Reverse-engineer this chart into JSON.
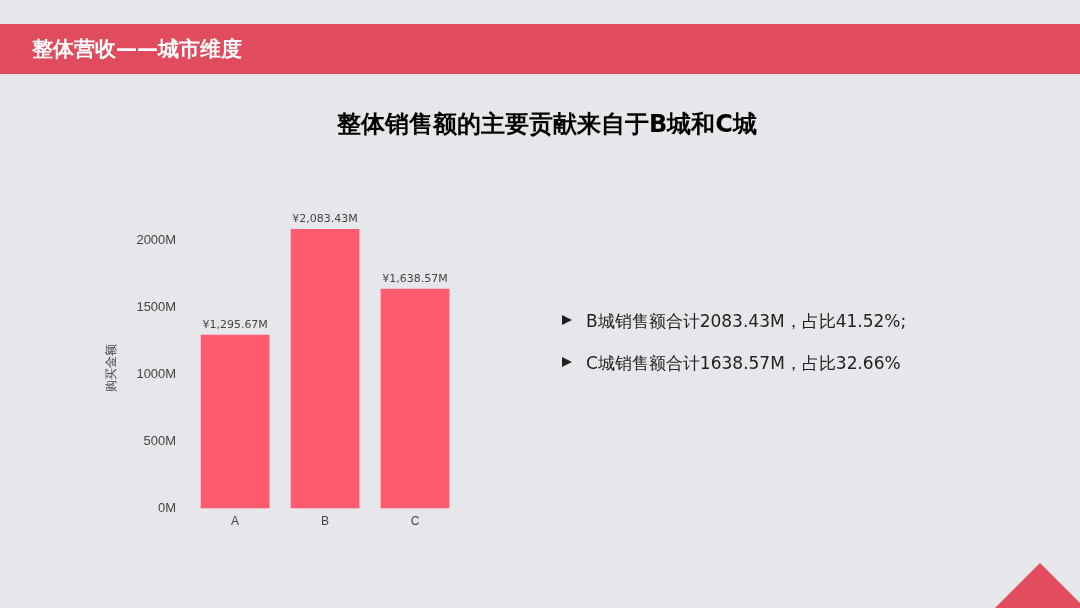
{
  "chart_data": {
    "type": "bar",
    "title": "整体营收——城市维度",
    "subtitle": "整体销售额的主要贡献来自于B城和C城",
    "ylabel": "购买金额",
    "categories": [
      "A",
      "B",
      "C"
    ],
    "values": [
      1295.67,
      2083.43,
      1638.57
    ],
    "value_labels": [
      "¥1,295.67M",
      "¥2,083.43M",
      "¥1,638.57M"
    ],
    "color": "#ff5a6e",
    "ylim": [
      0,
      2100
    ],
    "yticks": [
      {
        "value": 0,
        "label": "0M"
      },
      {
        "value": 500,
        "label": "500M"
      },
      {
        "value": 1000,
        "label": "1000M"
      },
      {
        "value": 1500,
        "label": "1500M"
      },
      {
        "value": 2000,
        "label": "2000M"
      }
    ],
    "grid": false,
    "legend": false,
    "annotations": [
      "B城销售额合计2083.43M，占比41.52%;",
      "C城销售额合计1638.57M，占比32.66%"
    ]
  }
}
